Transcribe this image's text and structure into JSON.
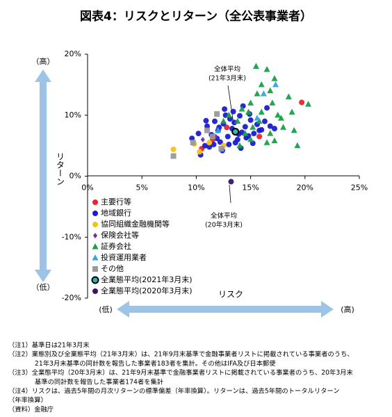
{
  "chart_data": {
    "type": "scatter",
    "title": "図表4：リスクとリターン（全公表事業者）",
    "x_label": "リスク",
    "y_label": "リターン",
    "x_low": "(低)",
    "x_high": "(高)",
    "y_high": "（高）",
    "y_low": "（低）",
    "xlim": [
      0,
      25
    ],
    "ylim": [
      -20,
      20
    ],
    "xticks": [
      {
        "value": 0,
        "label": "0%"
      },
      {
        "value": 5,
        "label": "5%"
      },
      {
        "value": 10,
        "label": "10%"
      },
      {
        "value": 15,
        "label": "15%"
      },
      {
        "value": 20,
        "label": "20%"
      },
      {
        "value": 25,
        "label": "25%"
      }
    ],
    "yticks": [
      {
        "value": -20,
        "label": "-20%"
      },
      {
        "value": -10,
        "label": "-10%"
      },
      {
        "value": 0,
        "label": "0%"
      },
      {
        "value": 10,
        "label": "10%"
      },
      {
        "value": 20,
        "label": "20%"
      }
    ],
    "series": [
      {
        "name": "主要行等",
        "color": "#e8262a",
        "marker": "circle",
        "x": [
          19.7,
          15.8,
          10.5,
          12.8,
          11.5
        ],
        "values": [
          12.1,
          6.5,
          4.5,
          8.0,
          6.0
        ]
      },
      {
        "name": "地域銀行",
        "color": "#1c1cd0",
        "marker": "circle",
        "x": [
          9.6,
          10.2,
          10.8,
          11.0,
          11.4,
          11.7,
          12.0,
          12.2,
          12.5,
          12.7,
          12.9,
          13.1,
          13.3,
          13.5,
          13.8,
          14.0,
          14.2,
          14.5,
          14.8,
          15.0,
          15.3,
          15.6,
          16.0,
          16.3,
          16.8,
          17.2,
          10.4,
          11.2,
          11.9,
          12.4,
          13.0,
          13.6,
          14.1,
          14.6,
          15.2,
          15.8,
          12.6,
          13.4,
          14.3,
          11.6,
          10.9,
          13.9,
          14.9,
          12.1,
          16.5
        ],
        "values": [
          6.2,
          7.0,
          5.0,
          8.2,
          6.8,
          9.0,
          7.5,
          5.6,
          8.6,
          10.0,
          6.5,
          9.4,
          7.8,
          8.8,
          6.0,
          9.9,
          7.2,
          8.1,
          6.6,
          9.2,
          7.0,
          8.5,
          7.6,
          9.0,
          8.2,
          7.8,
          3.5,
          4.8,
          6.2,
          4.2,
          5.2,
          5.5,
          4.6,
          6.3,
          5.4,
          7.5,
          11.0,
          10.6,
          11.5,
          5.2,
          9.1,
          6.9,
          10.2,
          8.0,
          11.2
        ]
      },
      {
        "name": "協同組織金融機関等",
        "color": "#f2c21b",
        "marker": "circle",
        "x": [
          7.9,
          9.8,
          11.2,
          12.5,
          10.3
        ],
        "values": [
          4.4,
          5.3,
          5.5,
          5.0,
          4.0
        ]
      },
      {
        "name": "保険会社等",
        "color": "#7030a0",
        "marker": "diamond",
        "x": [
          10.6,
          11.8
        ],
        "values": [
          6.0,
          6.5
        ]
      },
      {
        "name": "証券会社",
        "color": "#17a048",
        "marker": "triangle",
        "x": [
          15.5,
          16.5,
          17.2,
          16.0,
          18.5,
          20.3,
          19.3,
          17.0,
          15.0,
          14.2,
          16.0,
          17.5,
          18.0,
          15.2,
          16.8,
          13.8,
          14.5,
          15.8,
          17.8,
          18.8,
          15.6,
          16.8,
          13.0,
          14.0,
          16.5,
          19.0,
          12.5,
          15.0,
          17.2,
          14.8
        ],
        "values": [
          18.0,
          17.5,
          16.0,
          15.0,
          13.0,
          11.8,
          5.0,
          12.0,
          12.0,
          11.0,
          10.5,
          10.0,
          8.0,
          8.0,
          7.0,
          9.0,
          7.0,
          9.0,
          9.5,
          10.5,
          13.5,
          14.0,
          10.0,
          5.0,
          5.5,
          7.5,
          9.0,
          6.0,
          5.8,
          10.5
        ]
      },
      {
        "name": "投資運用業者",
        "color": "#2ea6e0",
        "marker": "triangle",
        "x": [
          17.3,
          16.2,
          15.6,
          12.0
        ],
        "values": [
          15.0,
          13.5,
          9.5,
          7.5
        ]
      },
      {
        "name": "その他",
        "color": "#9a9a9a",
        "marker": "square",
        "x": [
          7.9,
          11.9,
          11.5,
          9.7,
          11.0,
          12.3
        ],
        "values": [
          3.3,
          10.2,
          6.5,
          5.5,
          7.5,
          4.5
        ]
      },
      {
        "name": "全業態平均(2021年3月末)",
        "color": "#2fb5b0",
        "edgecolor": "#000000",
        "marker": "circle",
        "x": [
          13.6
        ],
        "values": [
          7.3
        ]
      },
      {
        "name": "全業態平均(2020年3月末)",
        "color": "#3c1366",
        "marker": "circle",
        "x": [
          13.2
        ],
        "values": [
          -0.9
        ]
      }
    ],
    "annotations": [
      [
        "全体平均",
        "(21年3月末)"
      ],
      [
        "全体平均",
        "(20年3月末)"
      ]
    ],
    "notes": [
      "（注1）基準日は21年3月末",
      "（注2）業態別及び全業態平均（21年3月末）は、21年9月末基準で金融事業者リストに掲載されている事業者のうち、",
      "21年3月末基準の同計数を報告した事業者183者を集計。その他はIFA及び日本郵便",
      "（注3）全業態平均（20年3月末）は、21年9月末基準で金融事業者リストに掲載されている事業者のうち、20年3月末",
      "基準の同計数を報告した事業者174者を集計",
      "（注4）リスクは、過去5年間の月次リターンの標準偏差（年率換算）。リターンは、過去5年間のトータルリターン",
      "（年率換算）",
      "（資料）金融庁"
    ]
  }
}
